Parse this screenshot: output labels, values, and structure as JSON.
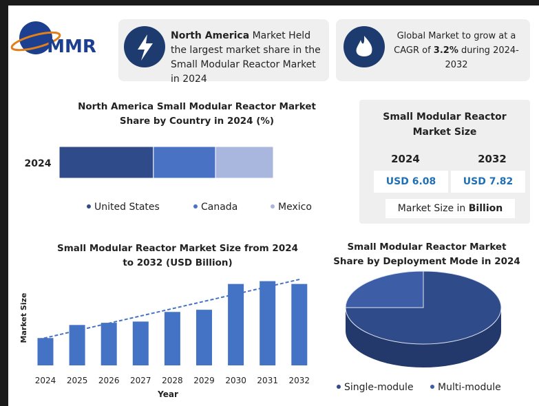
{
  "header": {
    "logo": "MMR",
    "left_box": {
      "bold": "North America",
      "text": "Market Held the largest market share in the Small Modular Reactor Market in 2024"
    },
    "right_box": {
      "text": "Global Market to grow at a CAGR of",
      "bold": "3.2%",
      "text_end": "during 2024-2032"
    }
  },
  "market_size": {
    "title": "Small Modular Reactor Market Size",
    "years": [
      "2024",
      "2032"
    ],
    "values": [
      "USD 6.08",
      "USD 7.82"
    ],
    "note": "Market Size in",
    "note_bold": "Billion"
  },
  "chart_data": [
    {
      "type": "stacked-bar",
      "title": "North America Small Modular Reactor Market Share by Country in 2024 (%)",
      "categories": [
        "2024"
      ],
      "series": [
        {
          "name": "United States",
          "color": "#2f4b8a",
          "values": [
            44
          ]
        },
        {
          "name": "Canada",
          "color": "#4a72c4",
          "values": [
            29
          ]
        },
        {
          "name": "Mexico",
          "color": "#a9b7de",
          "values": [
            27
          ]
        }
      ]
    },
    {
      "type": "bar",
      "title": "Small Modular Reactor Market Size from 2024 to 2032 (USD Billion)",
      "x_label": "Year",
      "y_label": "Market Size",
      "categories": [
        "2024",
        "2025",
        "2026",
        "2027",
        "2028",
        "2029",
        "2030",
        "2031",
        "2032"
      ],
      "values": [
        6.08,
        6.5,
        6.57,
        6.61,
        6.92,
        6.99,
        7.82,
        7.91,
        7.82
      ],
      "color": "#4472c4",
      "ylim": [
        5.2,
        8.1
      ],
      "trendline": true
    },
    {
      "type": "pie",
      "title": "Small Modular Reactor Market Share by Deployment Mode in  2024 (%)",
      "categories": [
        "Single-module",
        "Multi-module"
      ],
      "values": [
        75,
        25
      ],
      "colors": [
        "#2f4b8a",
        "#3d5ea6"
      ]
    }
  ]
}
